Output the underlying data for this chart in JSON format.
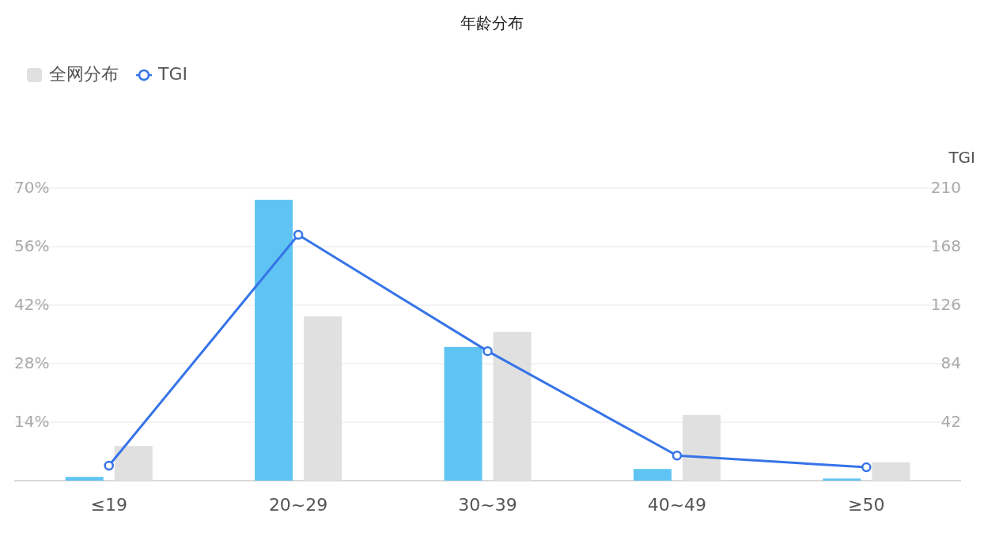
{
  "chart_data": {
    "type": "bar",
    "title": "年龄分布",
    "categories": [
      "≤19",
      "20~29",
      "30~39",
      "40~49",
      "≥50"
    ],
    "series": [
      {
        "color": "#5fc4f3",
        "values": [
          0.9,
          67.2,
          32.0,
          2.8,
          0.5
        ]
      },
      {
        "name": "全网分布",
        "color": "#e0e0e0",
        "values": [
          8.3,
          39.3,
          35.6,
          15.7,
          4.4
        ]
      },
      {
        "name": "TGI",
        "type": "line",
        "axis": "y2",
        "color": "#3674e8",
        "values": [
          10.8,
          176.5,
          93,
          18,
          9.6
        ]
      }
    ],
    "ylim": [
      0,
      70
    ],
    "yticks": [
      {
        "value": 0,
        "label": null
      },
      {
        "value": 14,
        "label": "14%"
      },
      {
        "value": 28,
        "label": "28%"
      },
      {
        "value": 42,
        "label": "42%"
      },
      {
        "value": 56,
        "label": "56%"
      },
      {
        "value": 70,
        "label": "70%"
      }
    ],
    "y2lim": [
      0,
      210
    ],
    "y2ticks": [
      42,
      84,
      126,
      168,
      210
    ],
    "y2label": "TGI",
    "grid": "y",
    "legend": "top left",
    "marker": "circle"
  }
}
